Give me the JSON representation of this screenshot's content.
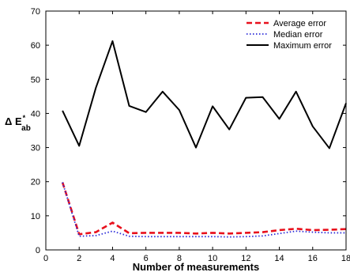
{
  "chart_data": {
    "type": "line",
    "title": "",
    "xlabel": "Number of measurements",
    "ylabel": {
      "base": "Δ E",
      "sup": "*",
      "sub": "ab"
    },
    "xlim": [
      0,
      18
    ],
    "ylim": [
      0,
      70
    ],
    "xticks": [
      "0",
      "2",
      "4",
      "6",
      "8",
      "10",
      "12",
      "14",
      "16",
      "18"
    ],
    "yticks": [
      "0",
      "10",
      "20",
      "30",
      "40",
      "50",
      "60",
      "70"
    ],
    "grid": false,
    "legend_position": "top-right",
    "x": [
      1,
      2,
      3,
      4,
      5,
      6,
      7,
      8,
      9,
      10,
      11,
      12,
      13,
      14,
      15,
      16,
      17,
      18
    ],
    "series": [
      {
        "name": "Average error",
        "color": "#e8101c",
        "style": "dashed",
        "values": [
          19.8,
          4.6,
          5.2,
          8.0,
          4.9,
          5.0,
          5.0,
          5.0,
          4.8,
          5.0,
          4.8,
          5.0,
          5.2,
          5.8,
          6.2,
          5.8,
          5.9,
          6.1
        ]
      },
      {
        "name": "Median error",
        "color": "#2a2ad8",
        "style": "dotted",
        "values": [
          19.8,
          4.0,
          4.2,
          5.5,
          4.0,
          3.9,
          3.9,
          3.9,
          3.9,
          3.9,
          3.8,
          3.9,
          4.1,
          4.8,
          5.5,
          5.2,
          5.0,
          5.0
        ]
      },
      {
        "name": "Maximum error",
        "color": "#000000",
        "style": "solid",
        "values": [
          40.8,
          30.5,
          47.5,
          61.2,
          42.2,
          40.4,
          46.4,
          41.0,
          30.0,
          42.1,
          35.3,
          44.6,
          44.8,
          38.4,
          46.4,
          36.2,
          29.8,
          43.0
        ]
      }
    ]
  }
}
